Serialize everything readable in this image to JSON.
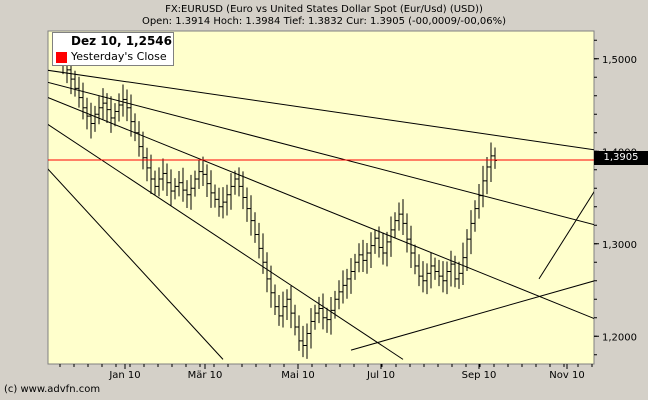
{
  "header": {
    "title": "FX:EURUSD (Euro vs United States Dollar Spot (Eur/Usd) (USD))",
    "quote": "Open: 1.3914 Hoch: 1.3984 Tief: 1.3832 Cur: 1.3905 (-00,0009/-00,06%)"
  },
  "legend": {
    "date_value": "Dez 10, 1,2546",
    "series_label": "Yesterday's Close",
    "series_color": "#ff0000"
  },
  "price_box": "1,3905",
  "copyright": "(c) www.advfn.com",
  "chart_data": {
    "type": "ohlc",
    "x_tick_labels": [
      "Jan 10",
      "Mär 10",
      "Mai 10",
      "Jul 10",
      "Sep 10",
      "Nov 10"
    ],
    "y_tick_labels": [
      "1,2000",
      "1,3000",
      "1,4000",
      "1,5000"
    ],
    "y_ticks": [
      1.2,
      1.3,
      1.4,
      1.5
    ],
    "ylim": [
      1.17,
      1.53
    ],
    "yesterdays_close": 1.3905,
    "series": [
      {
        "name": "EUR/USD",
        "color": "#000000",
        "values": [
          1.51,
          1.504,
          1.496,
          1.488,
          1.478,
          1.468,
          1.458,
          1.447,
          1.438,
          1.43,
          1.44,
          1.447,
          1.452,
          1.445,
          1.436,
          1.443,
          1.45,
          1.456,
          1.447,
          1.432,
          1.42,
          1.405,
          1.393,
          1.382,
          1.37,
          1.362,
          1.37,
          1.376,
          1.366,
          1.357,
          1.362,
          1.366,
          1.358,
          1.353,
          1.36,
          1.37,
          1.378,
          1.375,
          1.365,
          1.355,
          1.348,
          1.34,
          1.345,
          1.353,
          1.362,
          1.37,
          1.362,
          1.35,
          1.338,
          1.325,
          1.31,
          1.295,
          1.28,
          1.262,
          1.247,
          1.232,
          1.222,
          1.232,
          1.24,
          1.225,
          1.21,
          1.195,
          1.19,
          1.203,
          1.216,
          1.225,
          1.23,
          1.22,
          1.218,
          1.228,
          1.24,
          1.248,
          1.255,
          1.262,
          1.27,
          1.28,
          1.288,
          1.282,
          1.29,
          1.298,
          1.306,
          1.296,
          1.29,
          1.302,
          1.315,
          1.325,
          1.332,
          1.322,
          1.305,
          1.29,
          1.276,
          1.265,
          1.26,
          1.268,
          1.276,
          1.27,
          1.265,
          1.26,
          1.27,
          1.278,
          1.262,
          1.268,
          1.285,
          1.305,
          1.322,
          1.338,
          1.352,
          1.368,
          1.383,
          1.395,
          1.39
        ]
      }
    ],
    "trendlines": [
      {
        "from": [
          -28,
          1.504
        ],
        "to": [
          139,
          1.399
        ]
      },
      {
        "from": [
          -28,
          1.504
        ],
        "to": [
          162,
          1.29
        ]
      },
      {
        "from": [
          -28,
          1.504
        ],
        "to": [
          160,
          1.175
        ]
      },
      {
        "from": [
          -28,
          1.504
        ],
        "to": [
          42,
          1.175
        ]
      },
      {
        "from": [
          -28,
          1.504
        ],
        "to": [
          87,
          1.175
        ]
      },
      {
        "from": [
          74,
          1.185
        ],
        "to": [
          182,
          1.318
        ]
      },
      {
        "from": [
          121,
          1.262
        ],
        "to": [
          139,
          1.385
        ]
      }
    ],
    "grid": false,
    "legend_position": "top-left"
  }
}
